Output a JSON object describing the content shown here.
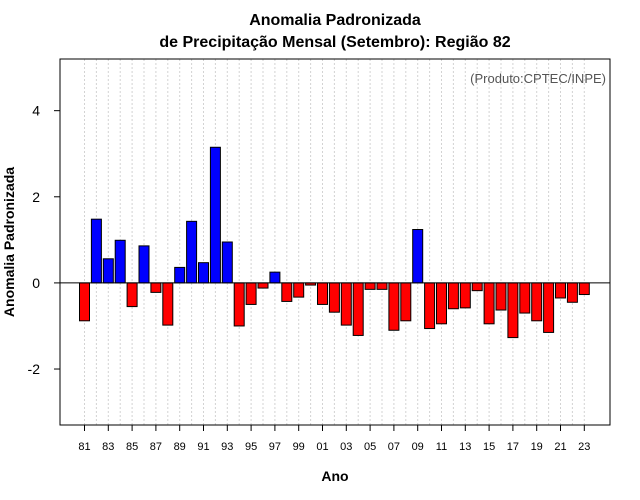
{
  "chart_data": {
    "type": "bar",
    "title_line1": "Anomalia Padronizada",
    "title_line2": "de Precipitação Mensal (Setembro): Região 82",
    "xlabel": "Ano",
    "ylabel": "Anomalia Padronizada",
    "credit": "(Produto:CPTEC/INPE)",
    "ylim": [
      -3.3,
      5.2
    ],
    "yticks": [
      -2,
      0,
      2,
      4
    ],
    "ytick_labels": [
      "-2",
      "0",
      "2",
      "4"
    ],
    "categories": [
      "81",
      "82",
      "83",
      "84",
      "85",
      "86",
      "87",
      "88",
      "89",
      "90",
      "91",
      "92",
      "93",
      "94",
      "95",
      "96",
      "97",
      "98",
      "99",
      "00",
      "01",
      "02",
      "03",
      "04",
      "05",
      "06",
      "07",
      "08",
      "09",
      "10",
      "11",
      "12",
      "13",
      "14",
      "15",
      "16",
      "17",
      "18",
      "19",
      "20",
      "21",
      "22",
      "23"
    ],
    "xtick_labels": [
      "81",
      "83",
      "85",
      "87",
      "89",
      "91",
      "93",
      "95",
      "97",
      "99",
      "01",
      "03",
      "05",
      "07",
      "09",
      "11",
      "13",
      "15",
      "17",
      "19",
      "21",
      "23"
    ],
    "values": [
      -0.88,
      1.48,
      0.56,
      0.99,
      -0.55,
      0.86,
      -0.22,
      -0.98,
      0.36,
      1.43,
      0.47,
      3.15,
      0.95,
      -1.0,
      -0.5,
      -0.12,
      0.25,
      -0.43,
      -0.33,
      -0.05,
      -0.5,
      -0.68,
      -0.98,
      -1.22,
      -0.15,
      -0.15,
      -1.1,
      -0.88,
      1.24,
      -1.06,
      -0.95,
      -0.6,
      -0.58,
      -0.18,
      -0.95,
      -0.63,
      -1.27,
      -0.7,
      -0.88,
      -1.15,
      -0.35,
      -0.45,
      -0.27
    ],
    "colors": {
      "positive": "#0000ff",
      "negative": "#ff0000",
      "outline": "#000000",
      "grid": "#d3d3d3"
    },
    "grid": true
  }
}
